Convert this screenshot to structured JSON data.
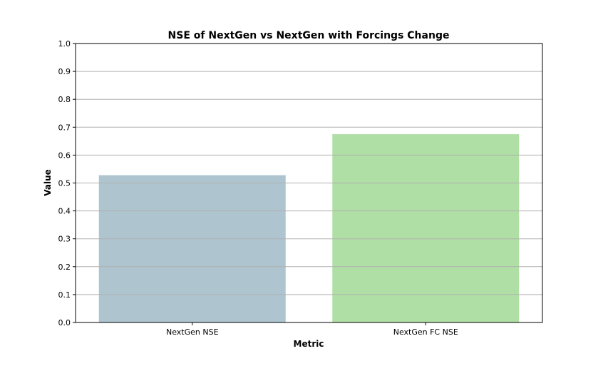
{
  "chart_data": {
    "type": "bar",
    "title": "NSE of NextGen vs NextGen with Forcings Change",
    "xlabel": "Metric",
    "ylabel": "Value",
    "categories": [
      "NextGen NSE",
      "NextGen FC NSE"
    ],
    "values": [
      0.528,
      0.675
    ],
    "colors": [
      "#aec5d0",
      "#b0dfa5"
    ],
    "ylim": [
      0,
      1.0
    ],
    "yticks": [
      "0.0",
      "0.1",
      "0.2",
      "0.3",
      "0.4",
      "0.5",
      "0.6",
      "0.7",
      "0.8",
      "0.9",
      "1.0"
    ],
    "grid": "horizontal",
    "grid_color": "#b0b0b0",
    "legend": "none"
  }
}
